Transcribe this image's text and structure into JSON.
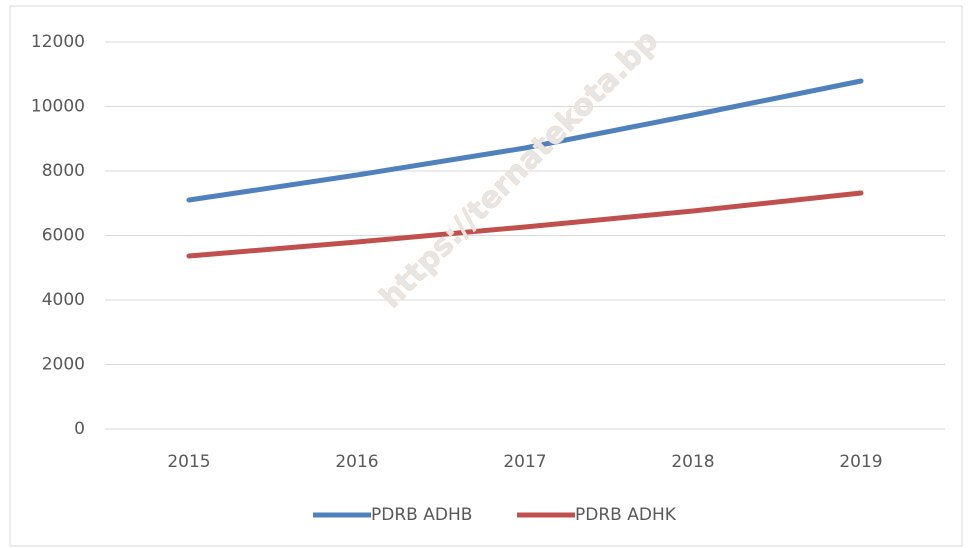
{
  "chart_data": {
    "type": "line",
    "watermark": "https://ternatekota.bp",
    "categories": [
      "2015",
      "2016",
      "2017",
      "2018",
      "2019"
    ],
    "series": [
      {
        "name": "PDRB ADHB",
        "color": "#4f81bd",
        "values": [
          7100,
          7876,
          8713,
          9736,
          10791
        ]
      },
      {
        "name": "PDRB ADHK",
        "color": "#c0504d",
        "values": [
          5364,
          5798,
          6264,
          6760,
          7318
        ]
      }
    ],
    "ylim": [
      0,
      12000
    ],
    "yticks": [
      0,
      2000,
      4000,
      6000,
      8000,
      10000,
      12000
    ],
    "grid": true,
    "legend": "bottom"
  }
}
